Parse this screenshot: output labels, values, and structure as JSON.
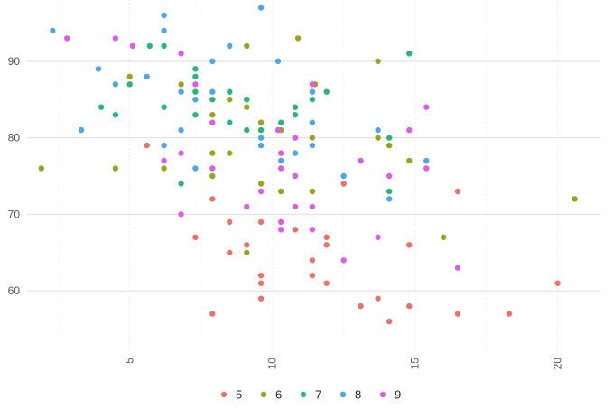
{
  "chart_data": {
    "type": "scatter",
    "title": "",
    "xlabel": "",
    "ylabel": "",
    "xlim": [
      1.4,
      21.5
    ],
    "ylim": [
      52,
      98
    ],
    "xticks": [
      5,
      10,
      15,
      20
    ],
    "yticks": [
      60,
      70,
      80,
      90
    ],
    "x_tick_labels": [
      "5",
      "10",
      "15",
      "20"
    ],
    "y_tick_labels": [
      "60",
      "70",
      "80",
      "90"
    ],
    "grid": true,
    "legend_position": "bottom",
    "series": [
      {
        "name": "5",
        "color": "#e8736b",
        "points": [
          [
            5.6,
            79
          ],
          [
            7.3,
            67
          ],
          [
            7.9,
            72
          ],
          [
            7.9,
            57
          ],
          [
            8.5,
            69
          ],
          [
            8.5,
            65
          ],
          [
            9.1,
            66
          ],
          [
            9.6,
            69
          ],
          [
            9.6,
            62
          ],
          [
            9.6,
            61
          ],
          [
            9.6,
            59
          ],
          [
            10.8,
            68
          ],
          [
            11.4,
            68
          ],
          [
            11.4,
            64
          ],
          [
            11.4,
            62
          ],
          [
            11.9,
            67
          ],
          [
            11.9,
            66
          ],
          [
            11.9,
            61
          ],
          [
            12.5,
            74
          ],
          [
            13.1,
            58
          ],
          [
            13.7,
            59
          ],
          [
            14.1,
            56
          ],
          [
            14.8,
            66
          ],
          [
            14.8,
            58
          ],
          [
            16.5,
            73
          ],
          [
            16.5,
            57
          ],
          [
            18.3,
            57
          ],
          [
            20.0,
            61
          ]
        ]
      },
      {
        "name": "6",
        "color": "#9aa31f",
        "points": [
          [
            1.9,
            76
          ],
          [
            4.5,
            76
          ],
          [
            5.0,
            88
          ],
          [
            6.2,
            76
          ],
          [
            6.8,
            87
          ],
          [
            7.9,
            83
          ],
          [
            7.9,
            78
          ],
          [
            7.9,
            75
          ],
          [
            8.5,
            85
          ],
          [
            8.5,
            78
          ],
          [
            9.1,
            92
          ],
          [
            9.1,
            85
          ],
          [
            9.1,
            84
          ],
          [
            9.1,
            65
          ],
          [
            9.6,
            82
          ],
          [
            9.6,
            81
          ],
          [
            9.6,
            74
          ],
          [
            10.3,
            81
          ],
          [
            10.3,
            73
          ],
          [
            10.9,
            93
          ],
          [
            11.5,
            87
          ],
          [
            11.4,
            80
          ],
          [
            11.4,
            73
          ],
          [
            13.7,
            90
          ],
          [
            13.7,
            80
          ],
          [
            14.1,
            79
          ],
          [
            14.8,
            77
          ],
          [
            16.0,
            67
          ],
          [
            20.6,
            72
          ]
        ]
      },
      {
        "name": "7",
        "color": "#2bb57c",
        "points": [
          [
            4.0,
            84
          ],
          [
            4.5,
            83
          ],
          [
            5.0,
            87
          ],
          [
            5.7,
            92
          ],
          [
            6.2,
            92
          ],
          [
            6.2,
            84
          ],
          [
            6.8,
            74
          ],
          [
            7.3,
            89
          ],
          [
            7.3,
            88
          ],
          [
            7.3,
            86
          ],
          [
            7.3,
            83
          ],
          [
            7.9,
            85
          ],
          [
            8.5,
            86
          ],
          [
            8.5,
            82
          ],
          [
            9.1,
            85
          ],
          [
            9.1,
            81
          ],
          [
            9.6,
            81
          ],
          [
            10.3,
            82
          ],
          [
            10.8,
            84
          ],
          [
            10.8,
            83
          ],
          [
            11.4,
            85
          ],
          [
            11.9,
            86
          ],
          [
            14.1,
            80
          ],
          [
            14.1,
            73
          ],
          [
            14.8,
            91
          ]
        ]
      },
      {
        "name": "8",
        "color": "#4ea6e8",
        "points": [
          [
            2.3,
            94
          ],
          [
            3.3,
            81
          ],
          [
            3.9,
            89
          ],
          [
            4.5,
            87
          ],
          [
            5.6,
            88
          ],
          [
            6.2,
            96
          ],
          [
            6.2,
            94
          ],
          [
            6.2,
            79
          ],
          [
            6.8,
            86
          ],
          [
            6.8,
            81
          ],
          [
            7.3,
            85
          ],
          [
            7.3,
            76
          ],
          [
            7.9,
            90
          ],
          [
            7.9,
            86
          ],
          [
            8.5,
            92
          ],
          [
            9.6,
            97
          ],
          [
            9.6,
            80
          ],
          [
            9.6,
            79
          ],
          [
            10.2,
            90
          ],
          [
            10.3,
            77
          ],
          [
            10.8,
            78
          ],
          [
            11.4,
            86
          ],
          [
            11.4,
            82
          ],
          [
            11.4,
            79
          ],
          [
            12.5,
            75
          ],
          [
            13.7,
            81
          ],
          [
            14.1,
            72
          ],
          [
            15.4,
            77
          ]
        ]
      },
      {
        "name": "9",
        "color": "#db5ee8",
        "points": [
          [
            2.8,
            93
          ],
          [
            4.5,
            93
          ],
          [
            5.1,
            92
          ],
          [
            6.2,
            77
          ],
          [
            6.8,
            91
          ],
          [
            6.8,
            78
          ],
          [
            6.8,
            70
          ],
          [
            7.3,
            87
          ],
          [
            7.9,
            82
          ],
          [
            7.9,
            76
          ],
          [
            9.1,
            71
          ],
          [
            9.6,
            73
          ],
          [
            10.2,
            81
          ],
          [
            10.3,
            78
          ],
          [
            10.3,
            76
          ],
          [
            10.3,
            69
          ],
          [
            10.3,
            68
          ],
          [
            10.8,
            80
          ],
          [
            10.8,
            75
          ],
          [
            10.8,
            71
          ],
          [
            11.4,
            87
          ],
          [
            11.4,
            71
          ],
          [
            11.4,
            68
          ],
          [
            12.5,
            64
          ],
          [
            13.1,
            77
          ],
          [
            13.7,
            67
          ],
          [
            14.1,
            75
          ],
          [
            14.8,
            81
          ],
          [
            15.4,
            84
          ],
          [
            15.4,
            76
          ],
          [
            16.5,
            63
          ]
        ]
      }
    ]
  }
}
